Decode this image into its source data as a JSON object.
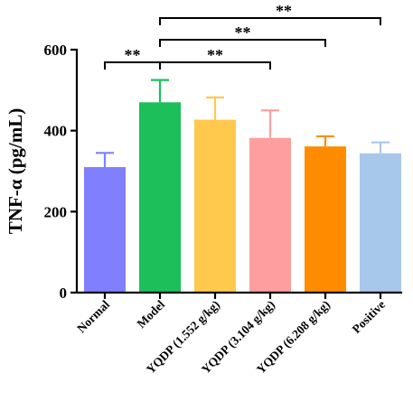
{
  "chart_data": {
    "type": "bar",
    "title": "",
    "xlabel": "",
    "ylabel": "TNF-α (pg/mL)",
    "ylim": [
      0,
      600
    ],
    "yticks": [
      0,
      200,
      400,
      600
    ],
    "grid": false,
    "categories": [
      "Normal",
      "Model",
      "YQDP (1.552 g/kg)",
      "YQDP (3.104 g/kg)",
      "YQDP (6.208 g/kg)",
      "Positive"
    ],
    "values": [
      310,
      470,
      427,
      382,
      361,
      344
    ],
    "errors": [
      35,
      55,
      55,
      68,
      25,
      27
    ],
    "colors": [
      "#8080ff",
      "#1dbf5a",
      "#ffc94d",
      "#ff9e9e",
      "#ff8c00",
      "#a7c8eb"
    ],
    "significance": [
      {
        "from": "Normal",
        "to": "Model",
        "label": "**"
      },
      {
        "from": "Model",
        "to": "YQDP (3.104 g/kg)",
        "label": "**"
      },
      {
        "from": "Model",
        "to": "YQDP (6.208 g/kg)",
        "label": "**"
      },
      {
        "from": "Model",
        "to": "Positive",
        "label": "**"
      }
    ]
  }
}
